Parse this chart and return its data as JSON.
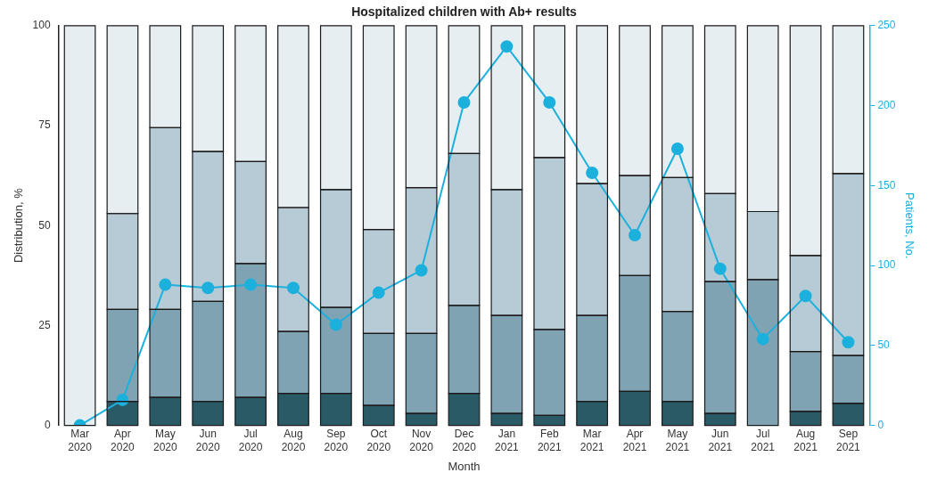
{
  "chart_data": {
    "type": "bar",
    "title": "Hospitalized children with Ab+ results",
    "xlabel": "Month",
    "ylabel": "Distribution, %",
    "y2label": "Patients, No.",
    "categories": [
      "Mar 2020",
      "Apr 2020",
      "May 2020",
      "Jun 2020",
      "Jul 2020",
      "Aug 2020",
      "Sep 2020",
      "Oct 2020",
      "Nov 2020",
      "Dec 2020",
      "Jan 2021",
      "Feb 2021",
      "Mar 2021",
      "Apr 2021",
      "May 2021",
      "Jun 2021",
      "Jul 2021",
      "Aug 2021",
      "Sep 2021"
    ],
    "stacked": true,
    "series": [
      {
        "color": "#2a5a66",
        "values": [
          0,
          6,
          7,
          6,
          7,
          8,
          8,
          5,
          3,
          8,
          3,
          2.5,
          6,
          8.5,
          6,
          3,
          0,
          3.5,
          5.5
        ]
      },
      {
        "color": "#7fa3b3",
        "values": [
          0,
          23,
          22,
          25,
          33.5,
          15.5,
          21.5,
          18,
          20,
          22,
          24.5,
          21.5,
          21.5,
          29,
          22.5,
          33,
          36.5,
          15,
          12
        ]
      },
      {
        "color": "#b6cbd6",
        "values": [
          0,
          24,
          45.5,
          37.5,
          25.5,
          31,
          29.5,
          26,
          36.5,
          38,
          31.5,
          43,
          33,
          25,
          33.5,
          22,
          17,
          24,
          45.5
        ]
      },
      {
        "color": "#e6eef2",
        "values": [
          100,
          47,
          25.5,
          31.5,
          34,
          45.5,
          41,
          51,
          40.5,
          32,
          41,
          33,
          39.5,
          37.5,
          38,
          42,
          46.5,
          57.5,
          37
        ]
      },
      {
        "type": "line",
        "axis": "y2",
        "color": "#1cb0dd",
        "values": [
          0,
          16,
          88,
          86,
          88,
          86,
          63,
          83,
          97,
          202,
          237,
          202,
          158,
          119,
          173,
          98,
          54,
          81,
          52
        ]
      }
    ],
    "ylim": [
      0,
      100
    ],
    "yticks": [
      0,
      25,
      50,
      75,
      100
    ],
    "y2lim": [
      0,
      250
    ],
    "y2ticks": [
      0,
      50,
      100,
      150,
      200,
      250
    ],
    "grid": false,
    "legend": false,
    "marker": "circle",
    "line_style": "solid"
  }
}
